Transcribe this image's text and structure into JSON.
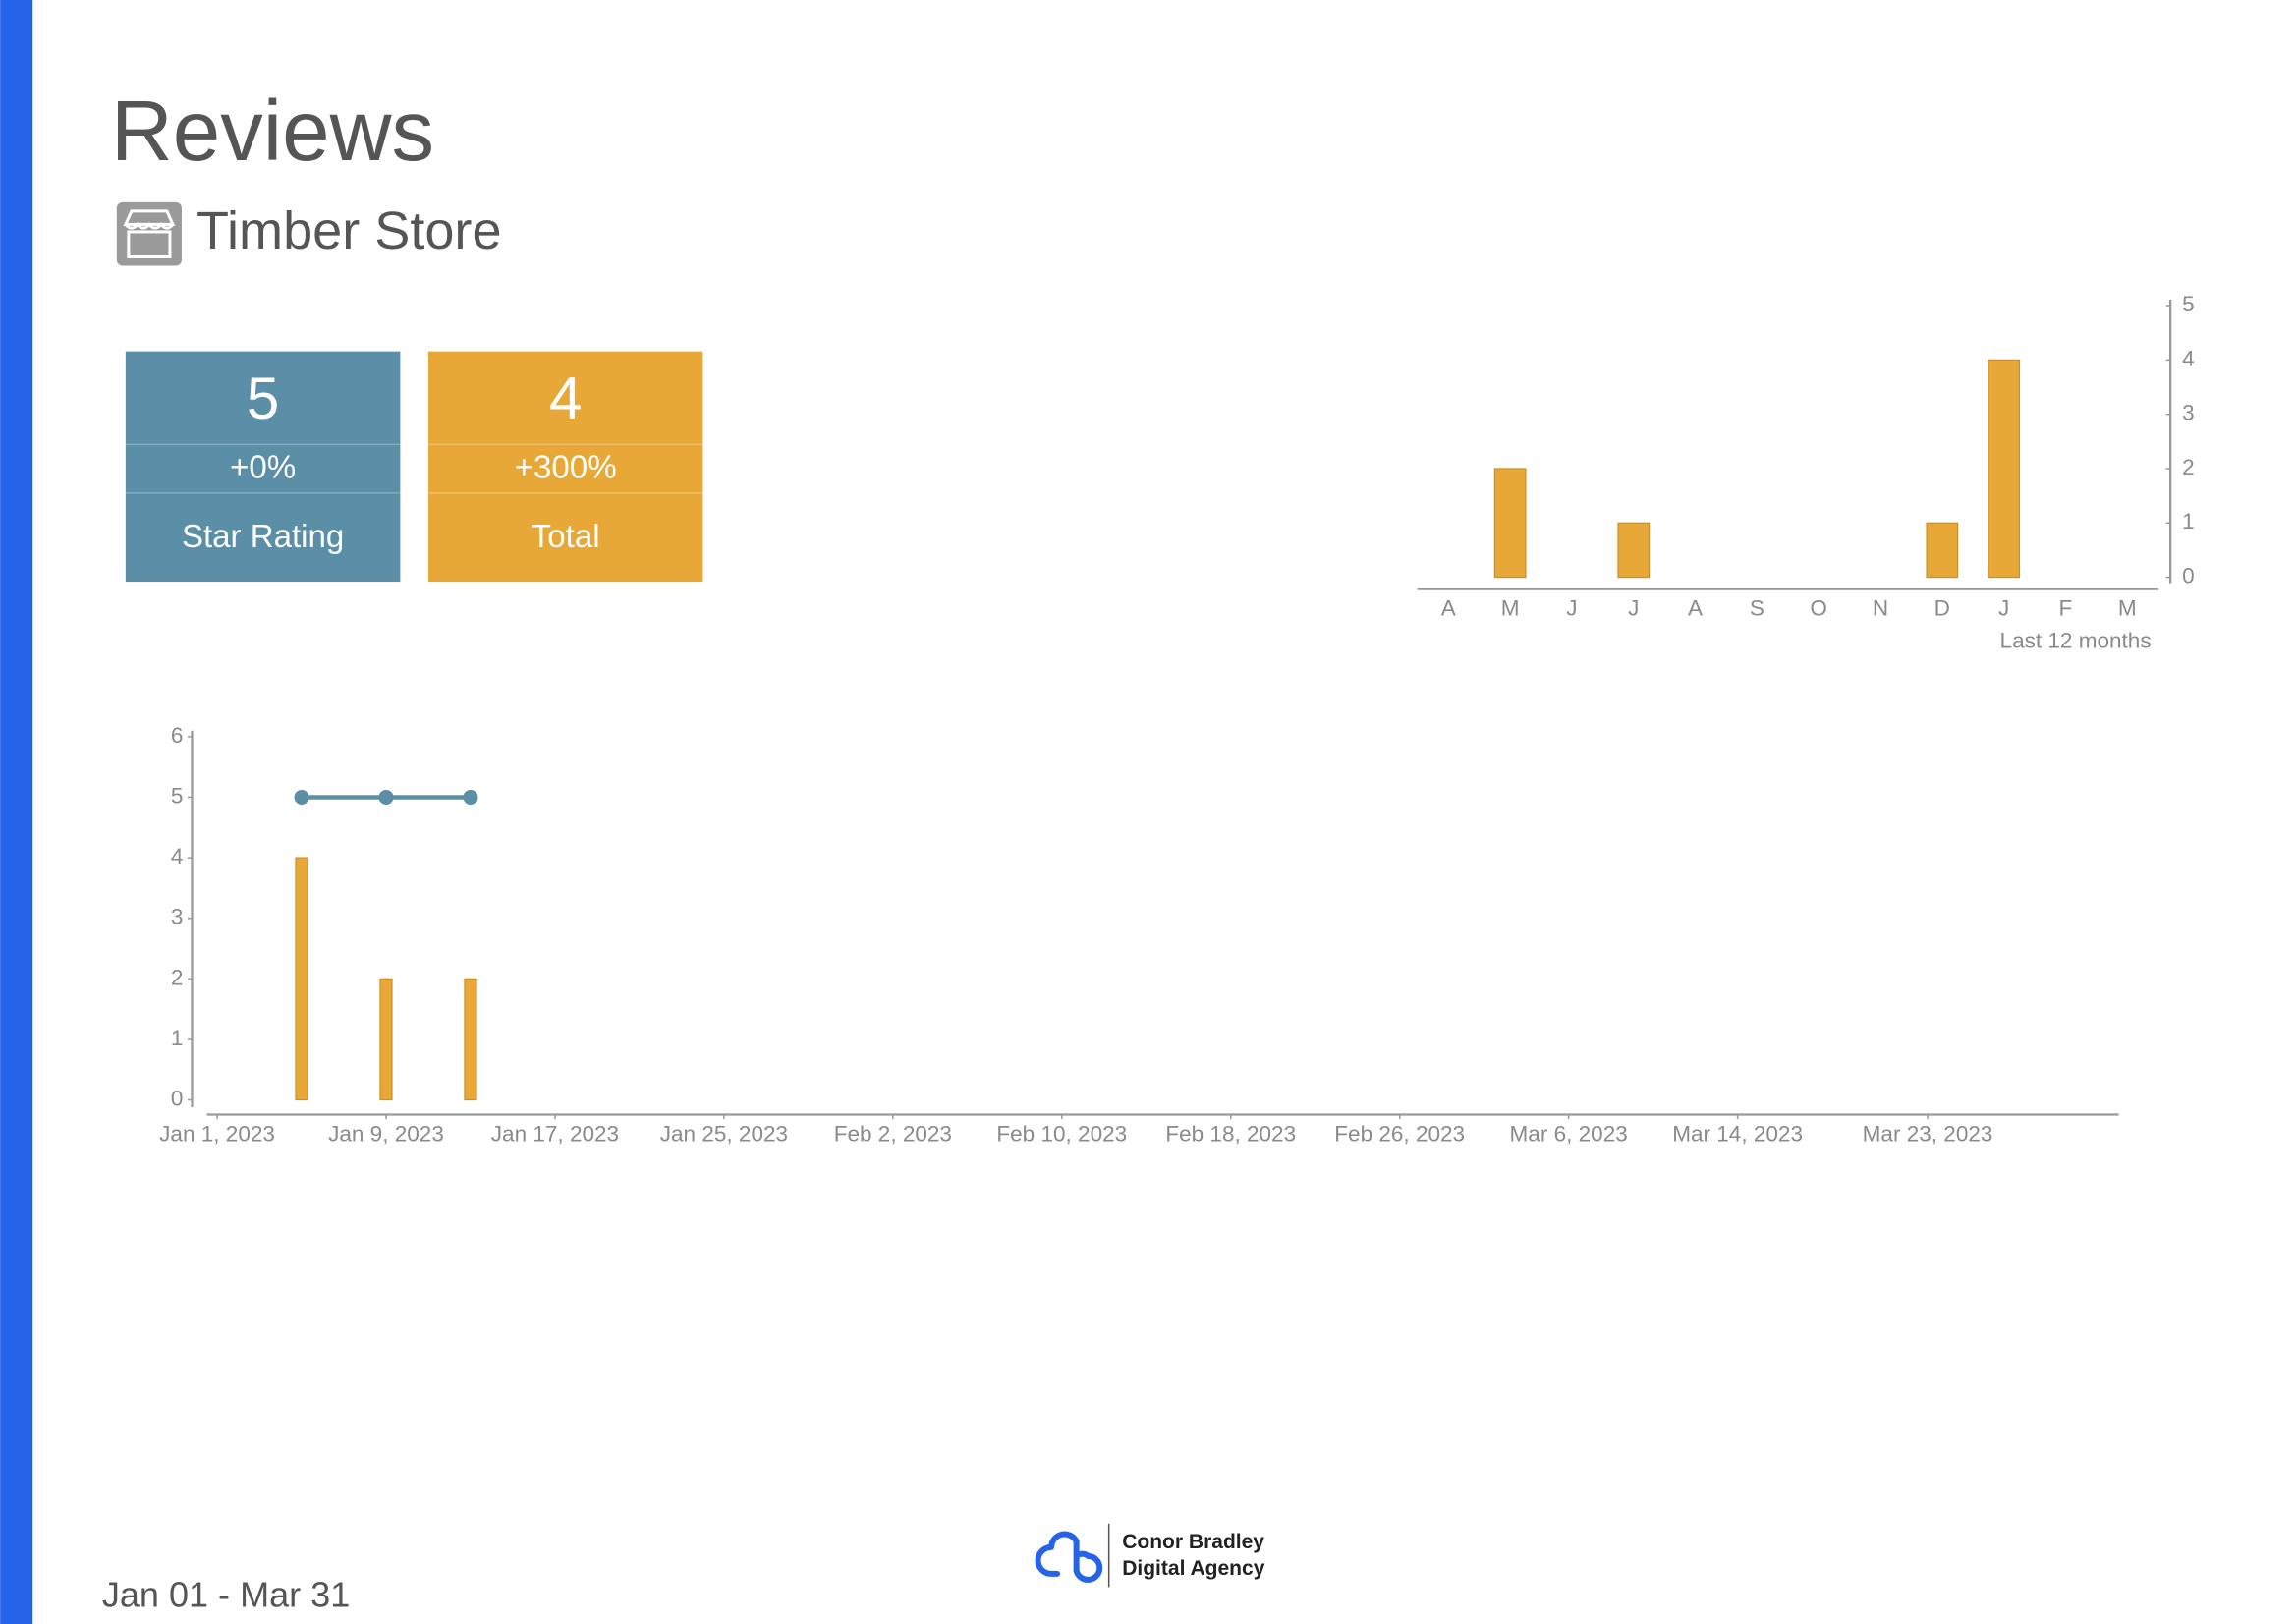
{
  "header": {
    "title": "Reviews",
    "subtitle": "Timber Store"
  },
  "kpis": [
    {
      "value": 5,
      "change": "+0%",
      "label": "Star Rating",
      "color": "#5b8fa8"
    },
    {
      "value": 4,
      "change": "+300%",
      "label": "Total",
      "color": "#e8a838"
    }
  ],
  "chart_data": [
    {
      "type": "bar",
      "xlabel": "Last 12 months",
      "categories": [
        "A",
        "M",
        "J",
        "J",
        "A",
        "S",
        "O",
        "N",
        "D",
        "J",
        "F",
        "M"
      ],
      "values": [
        0,
        2,
        0,
        1,
        0,
        0,
        0,
        0,
        1,
        4,
        0,
        0
      ],
      "color": "#e8a838",
      "ylim": [
        0,
        5
      ],
      "yticks": [
        0,
        1,
        2,
        3,
        4,
        5
      ],
      "y_axis_side": "right"
    },
    {
      "type": "combo",
      "x": [
        "2023-01-05",
        "2023-01-09",
        "2023-01-13"
      ],
      "series": [
        {
          "type": "bar",
          "color": "#e8a838",
          "values": [
            4,
            2,
            2
          ]
        },
        {
          "type": "line",
          "color": "#5b8fa8",
          "values": [
            5,
            5,
            5
          ]
        }
      ],
      "xlim": [
        "2023-01-01",
        "2023-03-31"
      ],
      "xticks": [
        {
          "value": "2023-01-01",
          "label": "Jan 1, 2023"
        },
        {
          "value": "2023-01-09",
          "label": "Jan 9, 2023"
        },
        {
          "value": "2023-01-17",
          "label": "Jan 17, 2023"
        },
        {
          "value": "2023-01-25",
          "label": "Jan 25, 2023"
        },
        {
          "value": "2023-02-02",
          "label": "Feb 2, 2023"
        },
        {
          "value": "2023-02-10",
          "label": "Feb 10, 2023"
        },
        {
          "value": "2023-02-18",
          "label": "Feb 18, 2023"
        },
        {
          "value": "2023-02-26",
          "label": "Feb 26, 2023"
        },
        {
          "value": "2023-03-06",
          "label": "Mar 6, 2023"
        },
        {
          "value": "2023-03-14",
          "label": "Mar 14, 2023"
        },
        {
          "value": "2023-03-23",
          "label": "Mar 23, 2023"
        }
      ],
      "ylim": [
        0,
        6
      ],
      "yticks": [
        0,
        1,
        2,
        3,
        4,
        5,
        6
      ]
    }
  ],
  "footer": {
    "date_range": "Jan 01 - Mar 31",
    "brand_line1": "Conor Bradley",
    "brand_line2": "Digital Agency"
  }
}
